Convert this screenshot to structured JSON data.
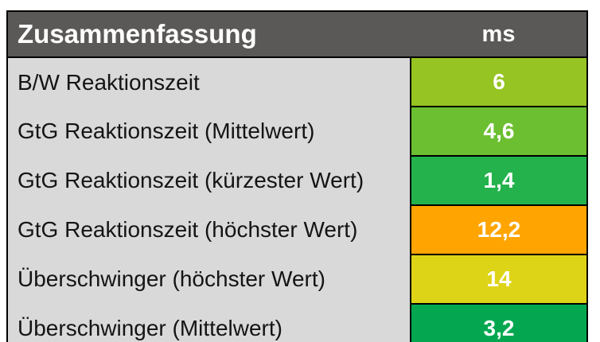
{
  "table": {
    "title": "Zusammenfassung",
    "unit": "ms",
    "rows": [
      {
        "label": "B/W Reaktionszeit",
        "value": "6",
        "color": "#96C422"
      },
      {
        "label": "GtG Reaktionszeit (Mittelwert)",
        "value": "4,6",
        "color": "#6CBF30"
      },
      {
        "label": "GtG Reaktionszeit (kürzester Wert)",
        "value": "1,4",
        "color": "#24B24C"
      },
      {
        "label": "GtG Reaktionszeit (höchster Wert)",
        "value": "12,2",
        "color": "#FFA400"
      },
      {
        "label": "Überschwinger (höchster Wert)",
        "value": "14",
        "color": "#DED417"
      },
      {
        "label": "Überschwinger (Mittelwert)",
        "value": "3,2",
        "color": "#04A74F"
      }
    ],
    "colors": {
      "header_bg": "#5A5957",
      "label_bg": "#D9D9D9",
      "border": "#000000",
      "header_text": "#ffffff",
      "value_text": "#ffffff",
      "label_text": "#141414"
    }
  },
  "chart_data": {
    "type": "table",
    "title": "Zusammenfassung",
    "unit": "ms",
    "categories": [
      "B/W Reaktionszeit",
      "GtG Reaktionszeit (Mittelwert)",
      "GtG Reaktionszeit (kürzester Wert)",
      "GtG Reaktionszeit (höchster Wert)",
      "Überschwinger (höchster Wert)",
      "Überschwinger (Mittelwert)"
    ],
    "values": [
      6,
      4.6,
      1.4,
      12.2,
      14,
      3.2
    ],
    "value_labels": [
      "6",
      "4,6",
      "1,4",
      "12,2",
      "14",
      "3,2"
    ],
    "cell_colors": [
      "#96C422",
      "#6CBF30",
      "#24B24C",
      "#FFA400",
      "#DED417",
      "#04A74F"
    ],
    "legend_position": "none",
    "notes": "color-coded rating cells; German decimal commas"
  }
}
